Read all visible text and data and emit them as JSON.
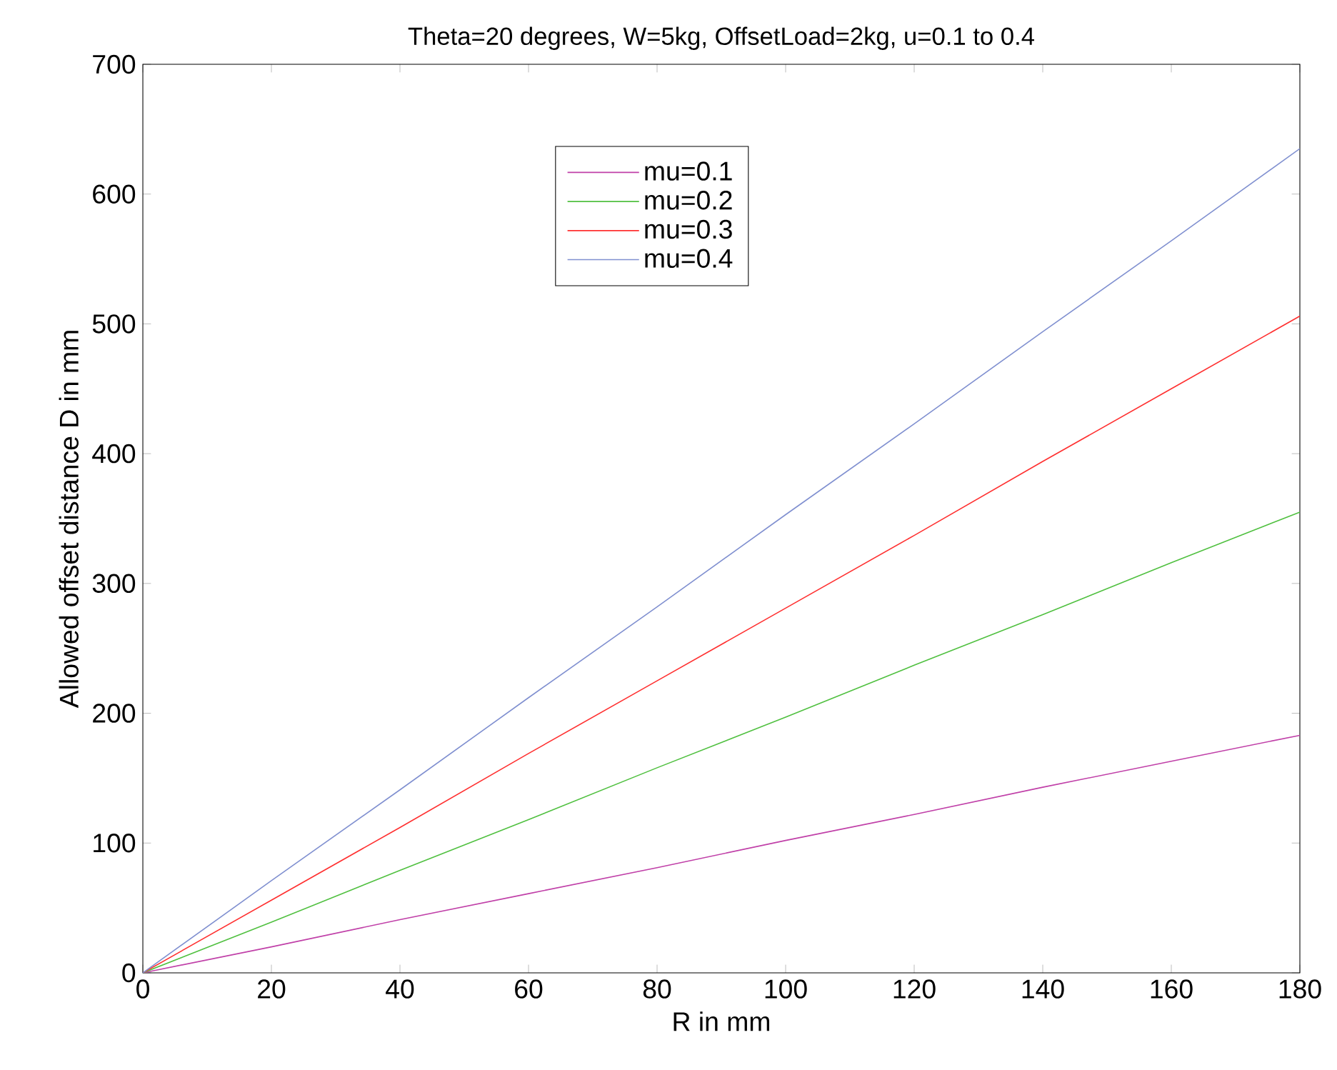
{
  "chart_data": {
    "type": "line",
    "title": "Theta=20 degrees, W=5kg, OffsetLoad=2kg, u=0.1 to 0.4",
    "xlabel": "R in mm",
    "ylabel": "Allowed offset distance D in mm",
    "x": [
      0,
      20,
      40,
      60,
      80,
      100,
      120,
      140,
      160,
      180
    ],
    "series": [
      {
        "name": "mu=0.1",
        "color": "#c040a8",
        "values": [
          0,
          20,
          41,
          61,
          81,
          102,
          122,
          143,
          163,
          183
        ]
      },
      {
        "name": "mu=0.2",
        "color": "#50c040",
        "values": [
          0,
          39,
          79,
          118,
          158,
          197,
          237,
          276,
          316,
          355
        ]
      },
      {
        "name": "mu=0.3",
        "color": "#ff3030",
        "values": [
          0,
          56,
          112,
          169,
          225,
          281,
          337,
          394,
          450,
          506
        ]
      },
      {
        "name": "mu=0.4",
        "color": "#8090d0",
        "values": [
          0,
          71,
          141,
          212,
          282,
          353,
          423,
          494,
          564,
          635
        ]
      }
    ],
    "xlim": [
      0,
      180
    ],
    "ylim": [
      0,
      700
    ],
    "xticks": [
      0,
      20,
      40,
      60,
      80,
      100,
      120,
      140,
      160,
      180
    ],
    "yticks": [
      0,
      100,
      200,
      300,
      400,
      500,
      600,
      700
    ],
    "legend": "top",
    "marker": "none",
    "line_style": "solid",
    "grid": false
  }
}
